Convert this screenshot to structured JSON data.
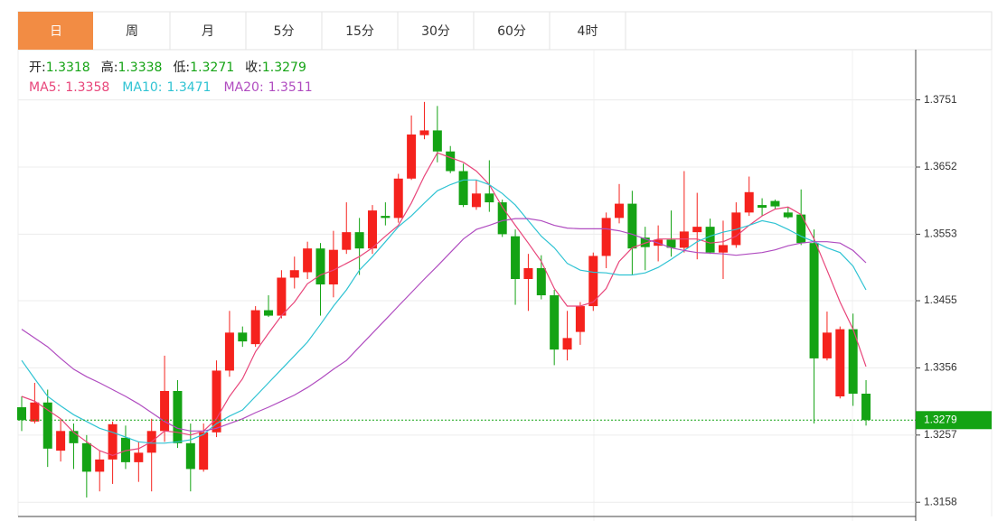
{
  "tabs": [
    "日",
    "周",
    "月",
    "5分",
    "15分",
    "30分",
    "60分",
    "4时"
  ],
  "active_tab": 0,
  "chart_data": {
    "type": "candlestick",
    "info_labels": [
      "开:",
      "高:",
      "低:",
      "收:"
    ],
    "up_color": "#f5221d",
    "down_color": "#14a314",
    "price_line_color": "#14a314",
    "ylim": [
      1.3137,
      1.3825
    ],
    "yticks": [
      1.3158,
      1.3257,
      1.3356,
      1.3455,
      1.3553,
      1.3652,
      1.3751
    ],
    "grid": true,
    "open": [
      1.3298,
      1.3277,
      1.3305,
      1.3234,
      1.3263,
      1.3245,
      1.3203,
      1.3221,
      1.3253,
      1.3217,
      1.3231,
      1.3263,
      1.3322,
      1.3245,
      1.3206,
      1.3261,
      1.3352,
      1.3408,
      1.3391,
      1.3441,
      1.3433,
      1.3489,
      1.3497,
      1.3532,
      1.3479,
      1.353,
      1.3556,
      1.3532,
      1.358,
      1.3577,
      1.3635,
      1.3699,
      1.3706,
      1.3675,
      1.3646,
      1.3593,
      1.3613,
      1.36,
      1.355,
      1.3487,
      1.3503,
      1.3463,
      1.3383,
      1.3409,
      1.3447,
      1.3521,
      1.3577,
      1.3598,
      1.3548,
      1.3536,
      1.3545,
      1.3533,
      1.3556,
      1.3564,
      1.3526,
      1.3537,
      1.3585,
      1.3596,
      1.3602,
      1.3585,
      1.3582,
      1.354,
      1.337,
      1.3314,
      1.3413,
      1.3318
    ],
    "high": [
      1.3314,
      1.3334,
      1.3324,
      1.3281,
      1.3274,
      1.3257,
      1.3234,
      1.3277,
      1.3271,
      1.3247,
      1.3281,
      1.3374,
      1.3338,
      1.3274,
      1.3274,
      1.3367,
      1.344,
      1.3417,
      1.3447,
      1.3463,
      1.35,
      1.352,
      1.3542,
      1.354,
      1.3558,
      1.36,
      1.3577,
      1.3596,
      1.36,
      1.3642,
      1.3728,
      1.3748,
      1.3742,
      1.3683,
      1.3657,
      1.3633,
      1.3662,
      1.3604,
      1.356,
      1.3524,
      1.3522,
      1.3471,
      1.344,
      1.3453,
      1.3526,
      1.3585,
      1.3627,
      1.3617,
      1.3564,
      1.3566,
      1.3588,
      1.3646,
      1.3614,
      1.3576,
      1.3573,
      1.36,
      1.3638,
      1.3606,
      1.3604,
      1.3593,
      1.3619,
      1.356,
      1.3439,
      1.3417,
      1.3436,
      1.3338
    ],
    "low": [
      1.3263,
      1.3274,
      1.321,
      1.3218,
      1.3207,
      1.3165,
      1.3174,
      1.3185,
      1.3207,
      1.3188,
      1.3174,
      1.3247,
      1.3238,
      1.3174,
      1.3203,
      1.3254,
      1.3343,
      1.3387,
      1.3387,
      1.3431,
      1.3429,
      1.3473,
      1.3487,
      1.3433,
      1.346,
      1.3524,
      1.3493,
      1.3524,
      1.3566,
      1.357,
      1.3633,
      1.3693,
      1.3659,
      1.3643,
      1.3593,
      1.3589,
      1.3586,
      1.3549,
      1.3449,
      1.344,
      1.3457,
      1.336,
      1.3367,
      1.339,
      1.344,
      1.3503,
      1.3569,
      1.3493,
      1.35,
      1.3513,
      1.352,
      1.3526,
      1.3516,
      1.3524,
      1.3487,
      1.3533,
      1.358,
      1.358,
      1.359,
      1.3576,
      1.3537,
      1.3274,
      1.3367,
      1.3311,
      1.33,
      1.3271
    ],
    "close": [
      1.3279,
      1.3305,
      1.3237,
      1.3263,
      1.3245,
      1.3203,
      1.3221,
      1.3273,
      1.3217,
      1.3231,
      1.3263,
      1.3322,
      1.3245,
      1.3207,
      1.3261,
      1.3352,
      1.3408,
      1.3395,
      1.3441,
      1.3433,
      1.3489,
      1.35,
      1.3532,
      1.3479,
      1.353,
      1.3556,
      1.3532,
      1.3588,
      1.3577,
      1.3635,
      1.37,
      1.3706,
      1.3675,
      1.3646,
      1.3596,
      1.3613,
      1.36,
      1.3553,
      1.3487,
      1.3503,
      1.3463,
      1.3383,
      1.34,
      1.3447,
      1.3521,
      1.3577,
      1.3598,
      1.3532,
      1.3534,
      1.3545,
      1.3533,
      1.3557,
      1.3564,
      1.3526,
      1.3537,
      1.3585,
      1.3615,
      1.3592,
      1.3594,
      1.3578,
      1.354,
      1.337,
      1.3408,
      1.3413,
      1.3318,
      1.3279
    ],
    "ma": [
      {
        "name": "MA5:",
        "color": "#e8457a",
        "values": [
          1.3314,
          1.3307,
          1.3294,
          1.3281,
          1.3261,
          1.3247,
          1.3234,
          1.3227,
          1.3234,
          1.3237,
          1.3247,
          1.3263,
          1.3261,
          1.3257,
          1.3263,
          1.3281,
          1.3314,
          1.334,
          1.338,
          1.3407,
          1.3433,
          1.3453,
          1.348,
          1.3493,
          1.35,
          1.351,
          1.352,
          1.3533,
          1.355,
          1.3566,
          1.3599,
          1.3639,
          1.3673,
          1.3666,
          1.3659,
          1.3646,
          1.3626,
          1.3593,
          1.3566,
          1.354,
          1.3513,
          1.3473,
          1.3447,
          1.3447,
          1.3453,
          1.3473,
          1.3513,
          1.3533,
          1.354,
          1.3546,
          1.3546,
          1.3546,
          1.3546,
          1.354,
          1.3542,
          1.355,
          1.3566,
          1.358,
          1.359,
          1.3593,
          1.3582,
          1.3546,
          1.35,
          1.3453,
          1.3413,
          1.3358
        ]
      },
      {
        "name": "MA10:",
        "color": "#2fc3d3",
        "values": [
          1.3367,
          1.334,
          1.3314,
          1.33,
          1.3287,
          1.3277,
          1.3267,
          1.3261,
          1.3254,
          1.3247,
          1.3245,
          1.3245,
          1.3247,
          1.325,
          1.3258,
          1.3274,
          1.3285,
          1.3294,
          1.3314,
          1.3334,
          1.3354,
          1.3374,
          1.3394,
          1.342,
          1.3447,
          1.3471,
          1.35,
          1.352,
          1.3542,
          1.3564,
          1.358,
          1.3599,
          1.3617,
          1.3626,
          1.3633,
          1.3633,
          1.3626,
          1.3613,
          1.3596,
          1.3573,
          1.355,
          1.3533,
          1.351,
          1.35,
          1.3497,
          1.3496,
          1.3493,
          1.3493,
          1.3496,
          1.3504,
          1.3516,
          1.3529,
          1.3542,
          1.355,
          1.3556,
          1.356,
          1.3566,
          1.3573,
          1.3569,
          1.356,
          1.355,
          1.3542,
          1.3533,
          1.3526,
          1.3506,
          1.3471
        ]
      },
      {
        "name": "MA20:",
        "color": "#b04cc0",
        "values": [
          1.3413,
          1.34,
          1.3387,
          1.337,
          1.3354,
          1.3343,
          1.3334,
          1.3324,
          1.3314,
          1.3303,
          1.329,
          1.3277,
          1.3267,
          1.3263,
          1.3263,
          1.3267,
          1.3274,
          1.3281,
          1.329,
          1.3298,
          1.3307,
          1.3316,
          1.3327,
          1.334,
          1.3354,
          1.3367,
          1.3387,
          1.3407,
          1.3427,
          1.3447,
          1.3467,
          1.3487,
          1.3506,
          1.3526,
          1.3546,
          1.356,
          1.3566,
          1.3573,
          1.3576,
          1.3576,
          1.3573,
          1.3566,
          1.3562,
          1.3561,
          1.3561,
          1.3561,
          1.3558,
          1.3553,
          1.3546,
          1.354,
          1.3533,
          1.3529,
          1.3526,
          1.3525,
          1.3524,
          1.3522,
          1.3524,
          1.3526,
          1.353,
          1.3536,
          1.354,
          1.3542,
          1.3542,
          1.354,
          1.3529,
          1.3511
        ]
      }
    ]
  }
}
